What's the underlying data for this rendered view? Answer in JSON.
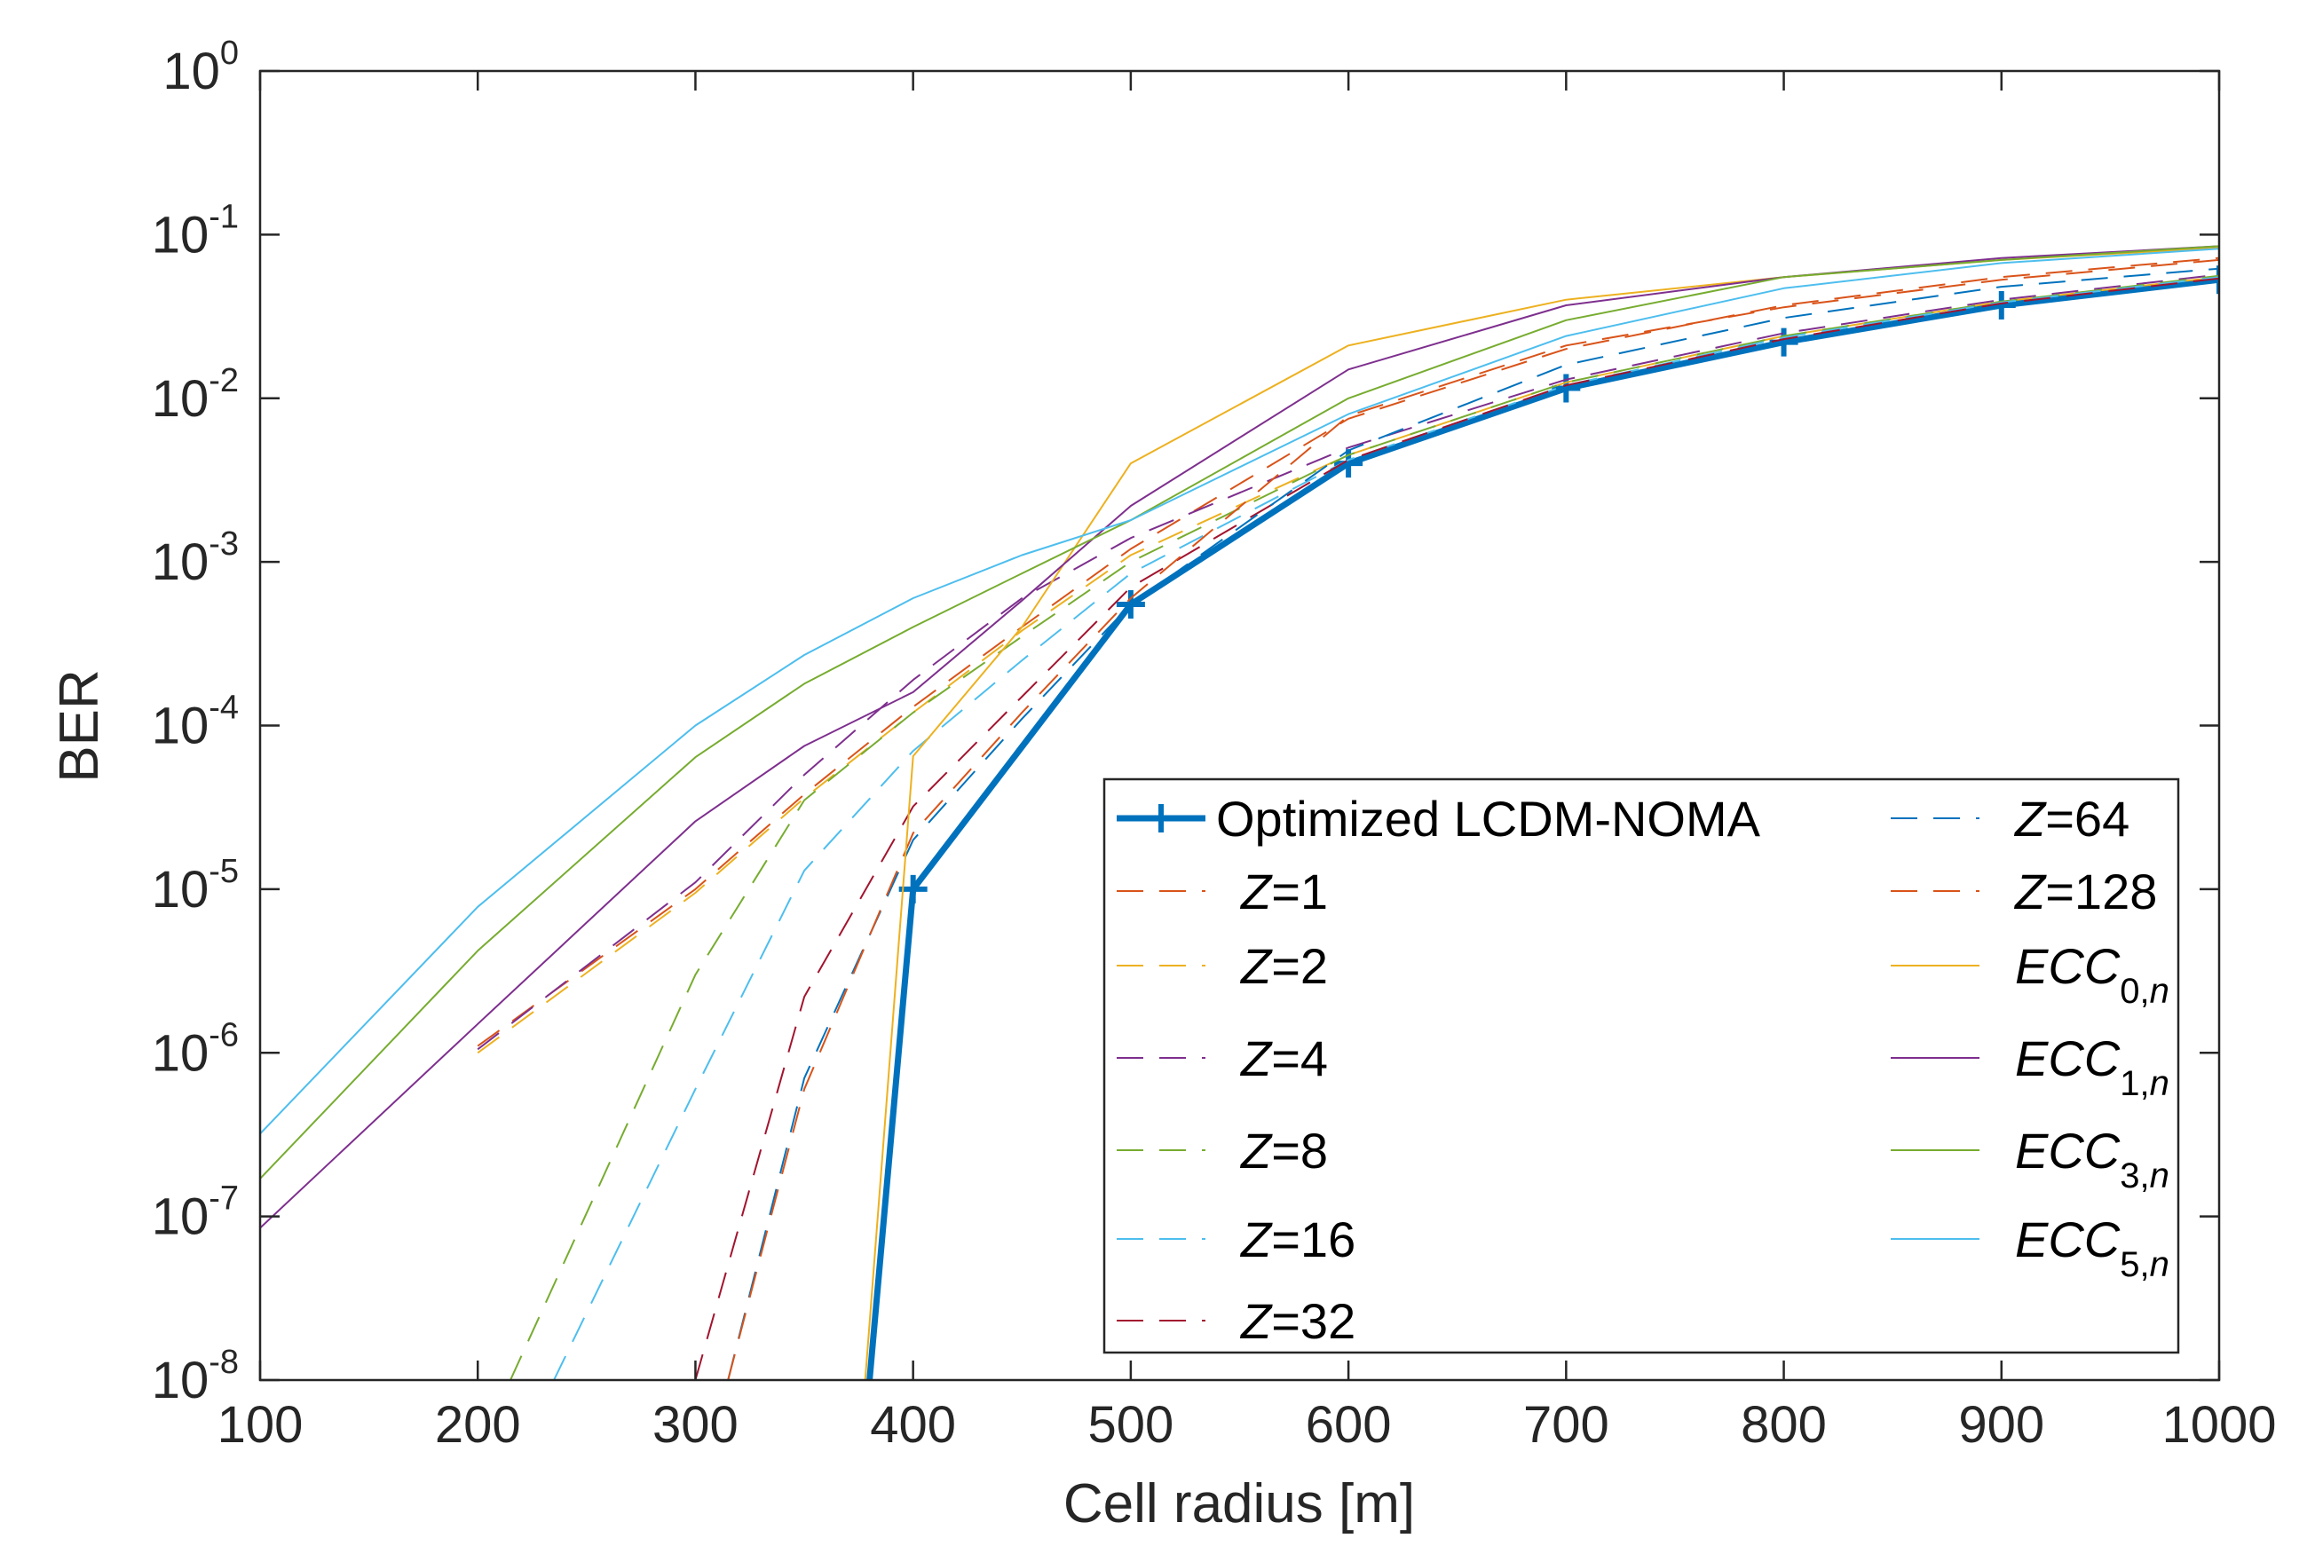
{
  "chart_data": {
    "type": "line",
    "title": "",
    "xlabel": "Cell radius [m]",
    "ylabel": "BER",
    "xlim": [
      100,
      1000
    ],
    "ylim": [
      1e-08,
      1
    ],
    "yscale": "log",
    "grid": false,
    "legend_location": "bottom-right",
    "x_ticks": [
      100,
      200,
      300,
      400,
      500,
      600,
      700,
      800,
      900,
      1000
    ],
    "y_ticks": [
      {
        "base": "10",
        "exp": "-8",
        "value": 1e-08
      },
      {
        "base": "10",
        "exp": "-7",
        "value": 1e-07
      },
      {
        "base": "10",
        "exp": "-6",
        "value": 1e-06
      },
      {
        "base": "10",
        "exp": "-5",
        "value": 1e-05
      },
      {
        "base": "10",
        "exp": "-4",
        "value": 0.0001
      },
      {
        "base": "10",
        "exp": "-3",
        "value": 0.001
      },
      {
        "base": "10",
        "exp": "-2",
        "value": 0.01
      },
      {
        "base": "10",
        "exp": "-1",
        "value": 0.1
      },
      {
        "base": "10",
        "exp": "0",
        "value": 1
      }
    ],
    "series": [
      {
        "name": "Optimized LCDM-NOMA",
        "label_parts": [
          {
            "t": "Optimized LCDM-NOMA",
            "style": "normal"
          }
        ],
        "color": "#0072BD",
        "style": "solid",
        "width": 7,
        "marker": "plus",
        "x": [
          380,
          400,
          500,
          600,
          700,
          800,
          900,
          1000
        ],
        "y": [
          1e-08,
          1e-05,
          0.00055,
          0.004,
          0.0115,
          0.022,
          0.037,
          0.053
        ],
        "marker_skip_first": true
      },
      {
        "name": "Z=1",
        "label_parts": [
          {
            "t": "Z",
            "style": "italic"
          },
          {
            "t": "=1",
            "style": "normal"
          }
        ],
        "color": "#D95319",
        "style": "dashed",
        "width": 2,
        "x": [
          200,
          300,
          350,
          400,
          450,
          500,
          600,
          700,
          800,
          900,
          1000
        ],
        "y": [
          1.1e-06,
          1e-05,
          3.8e-05,
          0.00013,
          0.0004,
          0.0012,
          0.0075,
          0.02,
          0.037,
          0.055,
          0.072
        ]
      },
      {
        "name": "Z=2",
        "label_parts": [
          {
            "t": "Z",
            "style": "italic"
          },
          {
            "t": "=2",
            "style": "normal"
          }
        ],
        "color": "#EDB120",
        "style": "dashed",
        "width": 2,
        "x": [
          200,
          300,
          350,
          400,
          450,
          500,
          600,
          700,
          800,
          900,
          1000
        ],
        "y": [
          1e-06,
          9.5e-06,
          3.6e-05,
          0.00012,
          0.00038,
          0.0011,
          0.0045,
          0.0125,
          0.024,
          0.039,
          0.055
        ]
      },
      {
        "name": "Z=4",
        "label_parts": [
          {
            "t": "Z",
            "style": "italic"
          },
          {
            "t": "=4",
            "style": "normal"
          }
        ],
        "color": "#7E2F8E",
        "style": "dashed",
        "width": 2,
        "x": [
          200,
          300,
          350,
          400,
          450,
          500,
          600,
          700,
          800,
          900,
          1000
        ],
        "y": [
          1.05e-06,
          1.1e-05,
          5e-05,
          0.00019,
          0.0006,
          0.0014,
          0.005,
          0.013,
          0.025,
          0.04,
          0.057
        ]
      },
      {
        "name": "Z=8",
        "label_parts": [
          {
            "t": "Z",
            "style": "italic"
          },
          {
            "t": "=8",
            "style": "normal"
          }
        ],
        "color": "#77AC30",
        "style": "dashed",
        "width": 2,
        "x": [
          215,
          300,
          350,
          400,
          450,
          500,
          600,
          700,
          800,
          900,
          1000
        ],
        "y": [
          1e-08,
          3e-06,
          3.5e-05,
          0.00012,
          0.00035,
          0.001,
          0.0045,
          0.0125,
          0.024,
          0.039,
          0.056
        ]
      },
      {
        "name": "Z=16",
        "label_parts": [
          {
            "t": "Z",
            "style": "italic"
          },
          {
            "t": "=16",
            "style": "normal"
          }
        ],
        "color": "#4DBEEE",
        "style": "dashed",
        "width": 2,
        "x": [
          235,
          300,
          350,
          400,
          450,
          500,
          600,
          700,
          800,
          900,
          1000
        ],
        "y": [
          1e-08,
          6e-07,
          1.3e-05,
          7e-05,
          0.00025,
          0.00085,
          0.0042,
          0.012,
          0.0235,
          0.0385,
          0.055
        ]
      },
      {
        "name": "Z=32",
        "label_parts": [
          {
            "t": "Z",
            "style": "italic"
          },
          {
            "t": "=32",
            "style": "normal"
          }
        ],
        "color": "#A2142F",
        "style": "dashed",
        "width": 2,
        "x": [
          300,
          350,
          400,
          450,
          500,
          600,
          700,
          800,
          900,
          1000
        ],
        "y": [
          1e-08,
          2.2e-06,
          3.2e-05,
          0.00015,
          0.0007,
          0.0042,
          0.012,
          0.023,
          0.038,
          0.054
        ]
      },
      {
        "name": "Z=64",
        "label_parts": [
          {
            "t": "Z",
            "style": "italic"
          },
          {
            "t": "=64",
            "style": "normal"
          }
        ],
        "color": "#0072BD",
        "style": "dashed",
        "width": 2,
        "x": [
          315,
          350,
          400,
          450,
          500,
          600,
          700,
          800,
          900,
          1000
        ],
        "y": [
          1e-08,
          7e-07,
          2e-05,
          0.00011,
          0.00055,
          0.0048,
          0.016,
          0.031,
          0.048,
          0.062
        ]
      },
      {
        "name": "Z=128",
        "label_parts": [
          {
            "t": "Z",
            "style": "italic"
          },
          {
            "t": "=128",
            "style": "normal"
          }
        ],
        "color": "#D95319",
        "style": "dashed",
        "width": 2,
        "x": [
          315,
          350,
          400,
          450,
          500,
          600,
          700,
          800,
          900,
          1000
        ],
        "y": [
          1e-08,
          6e-07,
          2.2e-05,
          0.00012,
          0.0006,
          0.0078,
          0.021,
          0.036,
          0.053,
          0.07
        ]
      },
      {
        "name": "ECC0,n",
        "label_parts": [
          {
            "t": "ECC",
            "style": "italic"
          },
          {
            "t": "0,",
            "style": "sub"
          },
          {
            "t": "n",
            "style": "sub-italic"
          }
        ],
        "color": "#EDB120",
        "style": "solid",
        "width": 2,
        "x": [
          378,
          400,
          450,
          500,
          600,
          700,
          800,
          900,
          1000
        ],
        "y": [
          1e-08,
          6.5e-05,
          0.0004,
          0.004,
          0.021,
          0.04,
          0.055,
          0.07,
          0.083
        ]
      },
      {
        "name": "ECC1,n",
        "label_parts": [
          {
            "t": "ECC",
            "style": "italic"
          },
          {
            "t": "1,",
            "style": "sub"
          },
          {
            "t": "n",
            "style": "sub-italic"
          }
        ],
        "color": "#7E2F8E",
        "style": "solid",
        "width": 2,
        "x": [
          100,
          200,
          300,
          350,
          400,
          450,
          500,
          600,
          700,
          800,
          900,
          1000
        ],
        "y": [
          8.5e-08,
          1.5e-06,
          2.6e-05,
          7.5e-05,
          0.00016,
          0.00058,
          0.0022,
          0.015,
          0.037,
          0.055,
          0.072,
          0.085
        ]
      },
      {
        "name": "ECC3,n",
        "label_parts": [
          {
            "t": "ECC",
            "style": "italic"
          },
          {
            "t": "3,",
            "style": "sub"
          },
          {
            "t": "n",
            "style": "sub-italic"
          }
        ],
        "color": "#77AC30",
        "style": "solid",
        "width": 2,
        "x": [
          100,
          200,
          300,
          350,
          400,
          450,
          500,
          600,
          700,
          800,
          900,
          1000
        ],
        "y": [
          1.7e-07,
          4.2e-06,
          6.4e-05,
          0.00018,
          0.0004,
          0.00085,
          0.0018,
          0.01,
          0.03,
          0.055,
          0.07,
          0.085
        ]
      },
      {
        "name": "ECC5,n",
        "label_parts": [
          {
            "t": "ECC",
            "style": "italic"
          },
          {
            "t": "5,",
            "style": "sub"
          },
          {
            "t": "n",
            "style": "sub-italic"
          }
        ],
        "color": "#4DBEEE",
        "style": "solid",
        "width": 2,
        "x": [
          100,
          200,
          300,
          350,
          400,
          450,
          500,
          600,
          700,
          800,
          900,
          1000
        ],
        "y": [
          3.2e-07,
          7.8e-06,
          0.0001,
          0.00027,
          0.0006,
          0.0011,
          0.0018,
          0.008,
          0.024,
          0.047,
          0.067,
          0.082
        ]
      }
    ],
    "legend_columns": [
      [
        "Optimized LCDM-NOMA",
        "Z=1",
        "Z=2",
        "Z=4",
        "Z=8",
        "Z=16",
        "Z=32"
      ],
      [
        "Z=64",
        "Z=128",
        "ECC0,n",
        "ECC1,n",
        "ECC3,n",
        "ECC5,n"
      ]
    ]
  }
}
